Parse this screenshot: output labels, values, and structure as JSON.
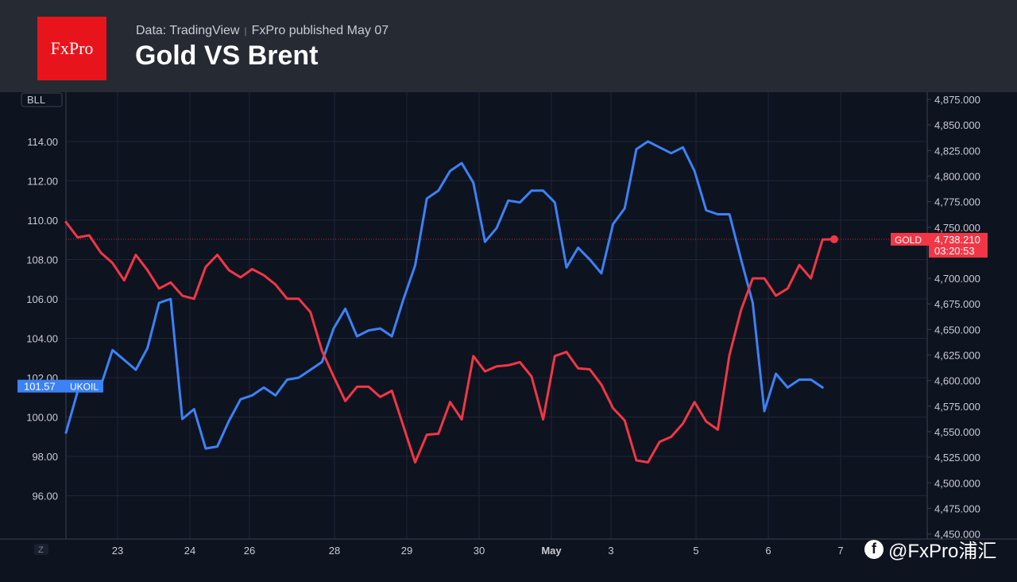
{
  "header": {
    "logo": "FxPro",
    "source": "Data: TradingView",
    "published": "FxPro published May 07",
    "title": "Gold VS Brent"
  },
  "watermark": {
    "icon": "f",
    "text": "@FxPro浦汇"
  },
  "colors": {
    "brent": "#3b82f6",
    "gold": "#f23645",
    "background": "#0e1320",
    "header": "#262a33",
    "grid": "#1f2636"
  },
  "chart_data": {
    "type": "line",
    "title": "Gold VS Brent",
    "x_labels": [
      "23",
      "24",
      "26",
      "28",
      "29",
      "30",
      "May",
      "3",
      "5",
      "6",
      "7"
    ],
    "left_axis": {
      "unit_label": "BLL",
      "ticks": [
        "114.00",
        "112.00",
        "110.00",
        "108.00",
        "106.00",
        "104.00",
        "102.00",
        "100.00",
        "98.00",
        "96.00"
      ],
      "range": [
        93.8,
        116.5
      ]
    },
    "right_axis": {
      "ticks": [
        "4,875.000",
        "4,850.000",
        "4,825.000",
        "4,800.000",
        "4,775.000",
        "4,750.000",
        "4,700.000",
        "4,675.000",
        "4,650.000",
        "4,625.000",
        "4,600.000",
        "4,575.000",
        "4,550.000",
        "4,525.000",
        "4,500.000",
        "4,475.000",
        "4,450.000"
      ],
      "range": [
        4445,
        4882
      ]
    },
    "series": [
      {
        "name": "UKOIL",
        "axis": "left",
        "last_label": "101.57",
        "x": [
          0,
          1,
          2,
          3,
          4,
          5,
          6,
          7,
          8,
          9,
          10,
          11,
          12,
          13,
          14,
          15,
          16,
          17,
          18,
          19,
          20,
          21,
          22,
          23,
          24,
          25,
          26,
          27,
          28,
          29,
          30,
          31,
          32,
          33,
          34,
          35,
          36,
          37,
          38,
          39,
          40,
          41,
          42,
          43,
          44,
          45,
          46,
          47,
          48,
          49,
          50,
          51,
          52,
          53,
          54,
          55,
          56,
          57,
          58,
          59,
          60,
          61,
          62,
          63,
          64,
          65,
          66,
          67,
          68,
          69,
          70
        ],
        "values": [
          99.2,
          101.3,
          101.5,
          101.6,
          103.4,
          102.9,
          102.4,
          103.5,
          105.8,
          106.0,
          99.9,
          100.4,
          98.4,
          98.5,
          99.8,
          100.9,
          101.1,
          101.5,
          101.1,
          101.9,
          102.0,
          102.4,
          102.8,
          104.5,
          105.5,
          104.1,
          104.4,
          104.5,
          104.1,
          106.0,
          107.7,
          111.1,
          111.5,
          112.5,
          112.9,
          111.9,
          108.9,
          109.6,
          111.0,
          110.9,
          111.5,
          111.5,
          110.9,
          107.6,
          108.6,
          108.0,
          107.3,
          109.8,
          110.6,
          113.6,
          114.0,
          113.7,
          113.4,
          113.7,
          112.5,
          110.5,
          110.3,
          110.3,
          108.0,
          105.8,
          100.3,
          102.2,
          101.5,
          101.9,
          101.9,
          101.5,
          null,
          null,
          null,
          null,
          null
        ]
      },
      {
        "name": "GOLD",
        "axis": "right",
        "last_label": "4,738.210",
        "time_label": "03:20:53",
        "x": [
          0,
          1,
          2,
          3,
          4,
          5,
          6,
          7,
          8,
          9,
          10,
          11,
          12,
          13,
          14,
          15,
          16,
          17,
          18,
          19,
          20,
          21,
          22,
          23,
          24,
          25,
          26,
          27,
          28,
          29,
          30,
          31,
          32,
          33,
          34,
          35,
          36,
          37,
          38,
          39,
          40,
          41,
          42,
          43,
          44,
          45,
          46,
          47,
          48,
          49,
          50,
          51,
          52,
          53,
          54,
          55,
          56,
          57,
          58,
          59,
          60,
          61,
          62,
          63,
          64,
          65,
          66
        ],
        "values": [
          4755,
          4740,
          4742,
          4725,
          4715,
          4698,
          4723,
          4708,
          4690,
          4696,
          4683,
          4680,
          4711,
          4723,
          4708,
          4701,
          4709,
          4703,
          4694,
          4680,
          4680,
          4667,
          4629,
          4604,
          4580,
          4594,
          4594,
          4584,
          4590,
          4555,
          4520,
          4547,
          4548,
          4579,
          4562,
          4624,
          4609,
          4614,
          4615,
          4618,
          4604,
          4562,
          4624,
          4628,
          4612,
          4611,
          4596,
          4573,
          4561,
          4522,
          4520,
          4540,
          4545,
          4558,
          4579,
          4560,
          4552,
          4625,
          4669,
          4700,
          4700,
          4683,
          4690,
          4713,
          4700,
          4738,
          4738.21
        ]
      }
    ],
    "current_line": {
      "axis": "right",
      "value": 4738.21
    },
    "grid": true
  }
}
